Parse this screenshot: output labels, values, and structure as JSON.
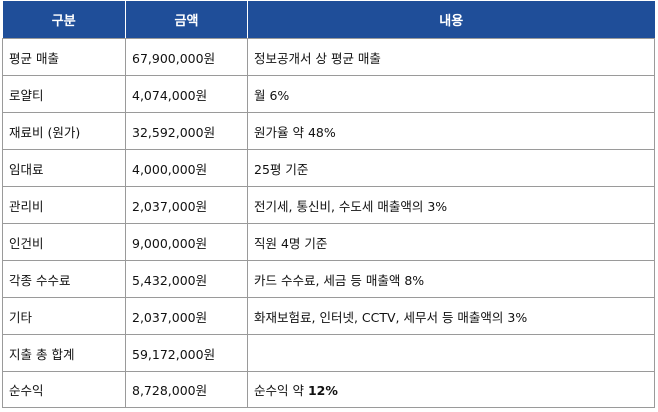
{
  "colors": {
    "header_bg": "#1f4e99",
    "header_text": "#ffffff",
    "border": "#9a9a9a",
    "body_text": "#111111"
  },
  "table": {
    "headers": [
      "구분",
      "금액",
      "내용"
    ],
    "rows": [
      {
        "category": "평균 매출",
        "amount": "67,900,000원",
        "note": "정보공개서 상 평균 매출"
      },
      {
        "category": "로얄티",
        "amount": "4,074,000원",
        "note": "월 6%"
      },
      {
        "category": "재료비 (원가)",
        "amount": "32,592,000원",
        "note": "원가율 약 48%"
      },
      {
        "category": "임대료",
        "amount": "4,000,000원",
        "note": "25평 기준"
      },
      {
        "category": "관리비",
        "amount": "2,037,000원",
        "note": "전기세, 통신비, 수도세 매출액의 3%"
      },
      {
        "category": "인건비",
        "amount": "9,000,000원",
        "note": "직원 4명 기준"
      },
      {
        "category": "각종 수수료",
        "amount": "5,432,000원",
        "note": "카드 수수료, 세금 등 매출액 8%"
      },
      {
        "category": "기타",
        "amount": "2,037,000원",
        "note": "화재보험료, 인터넷, CCTV, 세무서 등 매출액의 3%"
      },
      {
        "category": "지출 총 합계",
        "amount": "59,172,000원",
        "note": ""
      },
      {
        "category": "순수익",
        "amount": "8,728,000원",
        "note_prefix": "순수익 약 ",
        "note_bold": "12%"
      }
    ]
  }
}
